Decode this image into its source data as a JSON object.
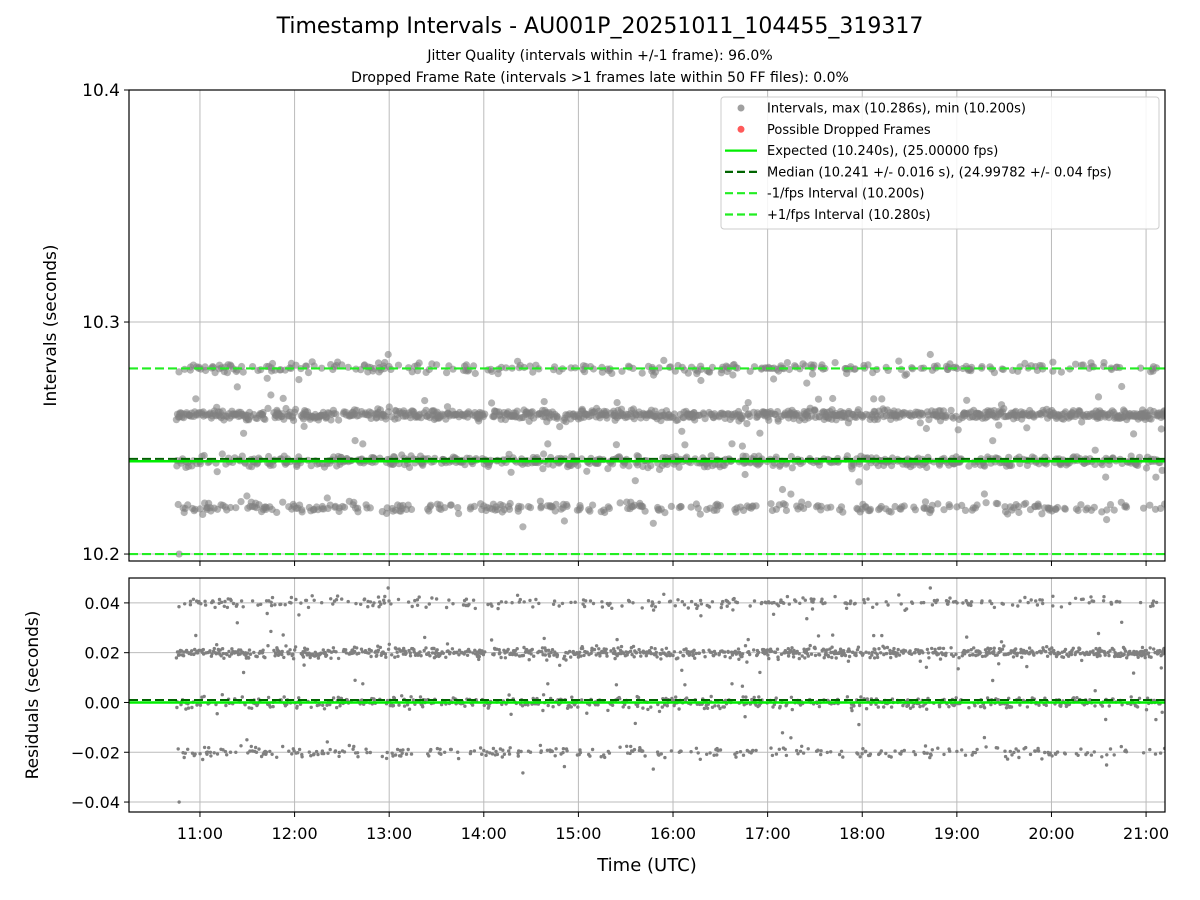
{
  "figure": {
    "title": "Timestamp Intervals - AU001P_20251011_104455_319317",
    "subtitle_jitter": "Jitter Quality (intervals within +/-1 frame): 96.0%",
    "subtitle_dropped": "Dropped Frame Rate (intervals >1 frames late within 50 FF files): 0.0%"
  },
  "colors": {
    "points": "#808080",
    "dropped": "#ff5a5a",
    "expected": "#00ee00",
    "median": "#006400",
    "bound": "#22ee22",
    "grid": "#bbbbbb"
  },
  "chart_data": [
    {
      "type": "scatter",
      "name": "intervals",
      "ylabel": "Intervals (seconds)",
      "xlim": [
        10.25,
        21.2
      ],
      "ylim": [
        10.197,
        10.4
      ],
      "yticks": [
        10.2,
        10.3,
        10.4
      ],
      "ytick_labels": [
        "10.2",
        "10.3",
        "10.4"
      ],
      "grid": true,
      "legend_position": "top-right",
      "legend": [
        {
          "label": "Intervals, max (10.286s), min (10.200s)",
          "kind": "dot",
          "color": "#a0a0a0"
        },
        {
          "label": "Possible Dropped Frames",
          "kind": "dot",
          "color": "#ff5a5a"
        },
        {
          "label": "Expected (10.240s), (25.00000 fps)",
          "kind": "solid",
          "color": "#00ee00"
        },
        {
          "label": "Median (10.241 +/- 0.016 s), (24.99782 +/- 0.04 fps)",
          "kind": "dash",
          "color": "#006400"
        },
        {
          "label": "-1/fps Interval (10.200s)",
          "kind": "dash",
          "color": "#22ee22"
        },
        {
          "label": "+1/fps Interval (10.280s)",
          "kind": "dash",
          "color": "#22ee22"
        }
      ],
      "reference_lines": {
        "expected": 10.24,
        "median": 10.241,
        "minus_one_frame": 10.2,
        "plus_one_frame": 10.28
      },
      "bands": [
        10.22,
        10.24,
        10.26,
        10.28
      ],
      "band_weights": [
        0.16,
        0.3,
        0.4,
        0.14
      ],
      "x_start": 10.75,
      "x_end": 21.2,
      "n_points": 2200,
      "max": 10.286,
      "min": 10.2,
      "dropped_frames": []
    },
    {
      "type": "scatter",
      "name": "residuals",
      "ylabel": "Residuals (seconds)",
      "xlabel": "Time (UTC)",
      "xlim": [
        10.25,
        21.2
      ],
      "ylim": [
        -0.044,
        0.05
      ],
      "yticks": [
        -0.04,
        -0.02,
        0.0,
        0.02,
        0.04
      ],
      "ytick_labels": [
        "−0.04",
        "−0.02",
        "0.00",
        "0.02",
        "0.04"
      ],
      "xticks": [
        11,
        12,
        13,
        14,
        15,
        16,
        17,
        18,
        19,
        20,
        21
      ],
      "xtick_labels": [
        "11:00",
        "12:00",
        "13:00",
        "14:00",
        "15:00",
        "16:00",
        "17:00",
        "18:00",
        "19:00",
        "20:00",
        "21:00"
      ],
      "grid": true,
      "reference_lines": {
        "zero": 0.0,
        "median_offset": 0.001
      },
      "bands": [
        -0.02,
        0.0,
        0.02,
        0.04
      ],
      "band_weights": [
        0.16,
        0.3,
        0.4,
        0.14
      ],
      "x_start": 10.75,
      "x_end": 21.2,
      "n_points": 2200
    }
  ]
}
